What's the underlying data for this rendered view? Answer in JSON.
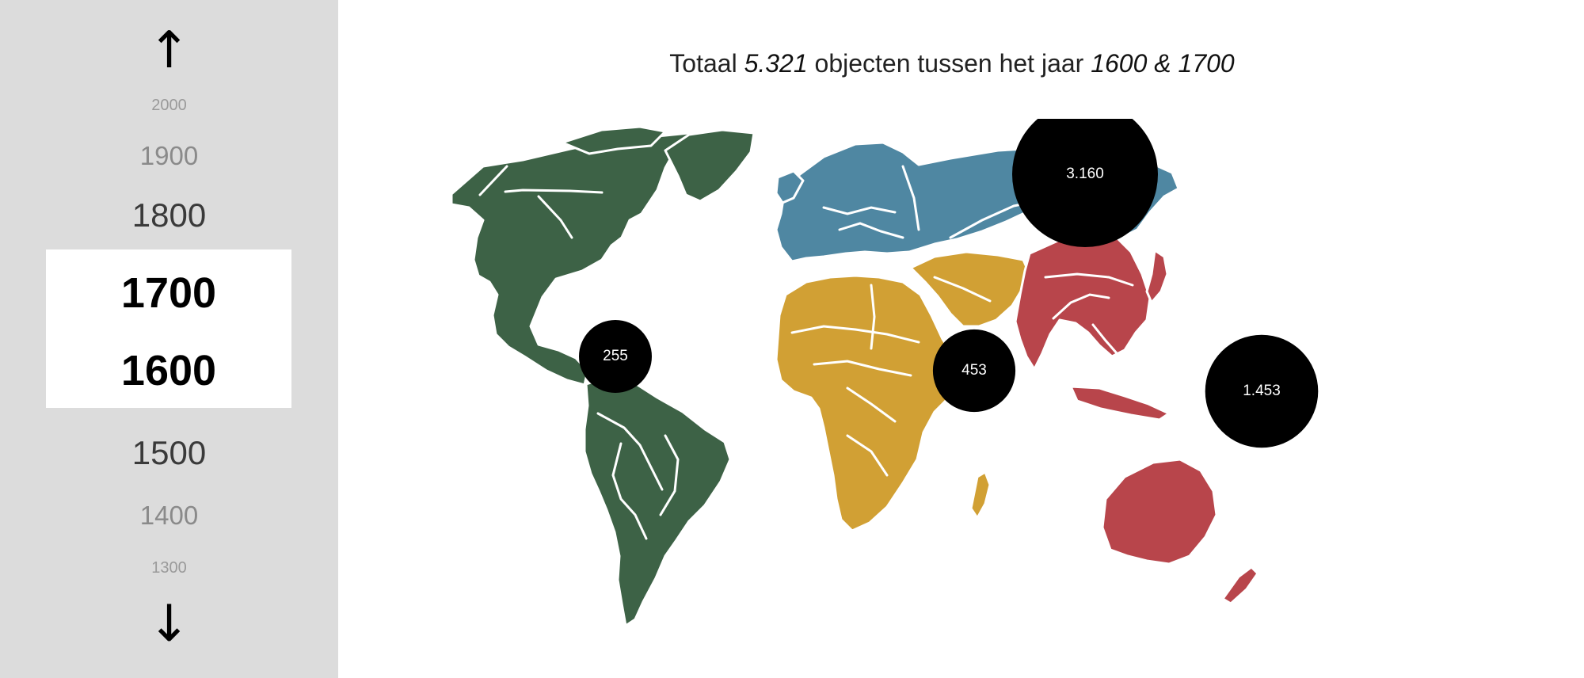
{
  "timeline": {
    "up_arrow": "↑",
    "down_arrow": "↓",
    "years_above": [
      "2000",
      "1900",
      "1800"
    ],
    "selected": {
      "end": "1700",
      "start": "1600"
    },
    "years_below": [
      "1500",
      "1400",
      "1300"
    ]
  },
  "headline": {
    "prefix": "Totaal ",
    "total": "5.321",
    "middle": " objecten tussen het jaar ",
    "range": "1600 & 1700"
  },
  "map": {
    "colors": {
      "americas": "#3d6246",
      "europe_north_asia": "#4f87a2",
      "africa_middle_east": "#d1a034",
      "asia_oceania": "#b8454b"
    },
    "bubbles": [
      {
        "region": "americas",
        "label": "255",
        "value": 255
      },
      {
        "region": "africa_middle_east",
        "label": "453",
        "value": 453
      },
      {
        "region": "europe_north_asia",
        "label": "3.160",
        "value": 3160
      },
      {
        "region": "asia_oceania",
        "label": "1.453",
        "value": 1453
      }
    ]
  }
}
